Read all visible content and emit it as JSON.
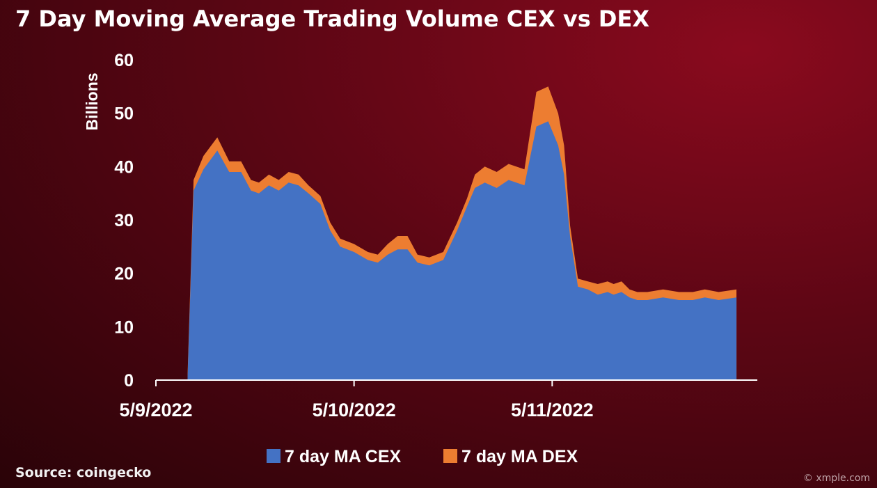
{
  "title": "7 Day Moving Average Trading Volume CEX vs DEX",
  "source": "Source: coingecko",
  "watermark": "© xmple.com",
  "colors": {
    "cex": "#4472C4",
    "dex": "#ED7D31",
    "axis": "#ffffff"
  },
  "chart_data": {
    "type": "area",
    "stacked": true,
    "title": "7 Day Moving Average Trading Volume CEX vs DEX",
    "ylabel": "Billions",
    "xlabel": "",
    "ylim": [
      0,
      60
    ],
    "yticks": [
      0,
      10,
      20,
      30,
      40,
      50,
      60
    ],
    "xlim": [
      0,
      3
    ],
    "xticks": [
      {
        "x": 0,
        "label": "5/9/2022"
      },
      {
        "x": 1,
        "label": "5/10/2022"
      },
      {
        "x": 2,
        "label": "5/11/2022"
      }
    ],
    "x": [
      0.16,
      0.19,
      0.24,
      0.31,
      0.37,
      0.43,
      0.48,
      0.52,
      0.57,
      0.62,
      0.67,
      0.72,
      0.77,
      0.83,
      0.88,
      0.93,
      1.0,
      1.07,
      1.12,
      1.17,
      1.22,
      1.27,
      1.32,
      1.38,
      1.45,
      1.52,
      1.57,
      1.61,
      1.66,
      1.72,
      1.78,
      1.86,
      1.92,
      1.98,
      2.03,
      2.06,
      2.09,
      2.13,
      2.18,
      2.23,
      2.28,
      2.31,
      2.35,
      2.39,
      2.43,
      2.48,
      2.56,
      2.64,
      2.71,
      2.77,
      2.84,
      2.93
    ],
    "series": [
      {
        "name": "7 day MA CEX",
        "values": [
          0.5,
          35.5,
          39.5,
          43.0,
          39.0,
          39.0,
          35.5,
          35.0,
          36.5,
          35.5,
          37.0,
          36.5,
          35.0,
          33.0,
          28.0,
          25.0,
          24.0,
          22.5,
          22.0,
          23.5,
          24.5,
          24.5,
          22.0,
          21.5,
          22.5,
          28.0,
          32.5,
          36.0,
          37.0,
          36.0,
          37.5,
          36.5,
          47.5,
          48.5,
          44.0,
          38.5,
          27.0,
          17.5,
          17.0,
          16.0,
          16.5,
          16.0,
          16.5,
          15.5,
          15.0,
          15.0,
          15.5,
          15.0,
          15.0,
          15.5,
          15.0,
          15.5
        ],
        "color": "#4472C4"
      },
      {
        "name": "7 day MA DEX",
        "values": [
          0.5,
          2.0,
          2.5,
          2.5,
          2.0,
          2.0,
          2.0,
          2.0,
          2.0,
          2.0,
          2.0,
          2.0,
          1.5,
          1.5,
          1.5,
          1.5,
          1.5,
          1.5,
          1.5,
          2.0,
          2.5,
          2.5,
          1.5,
          1.5,
          1.5,
          1.5,
          1.5,
          2.5,
          3.0,
          3.0,
          3.0,
          3.0,
          6.5,
          6.5,
          6.0,
          5.5,
          2.0,
          1.5,
          1.5,
          2.0,
          2.0,
          2.0,
          2.0,
          1.5,
          1.5,
          1.5,
          1.5,
          1.5,
          1.5,
          1.5,
          1.5,
          1.5
        ],
        "color": "#ED7D31"
      }
    ],
    "legend": [
      "7 day MA CEX",
      "7 day MA DEX"
    ],
    "legend_position": "bottom",
    "grid": false
  }
}
